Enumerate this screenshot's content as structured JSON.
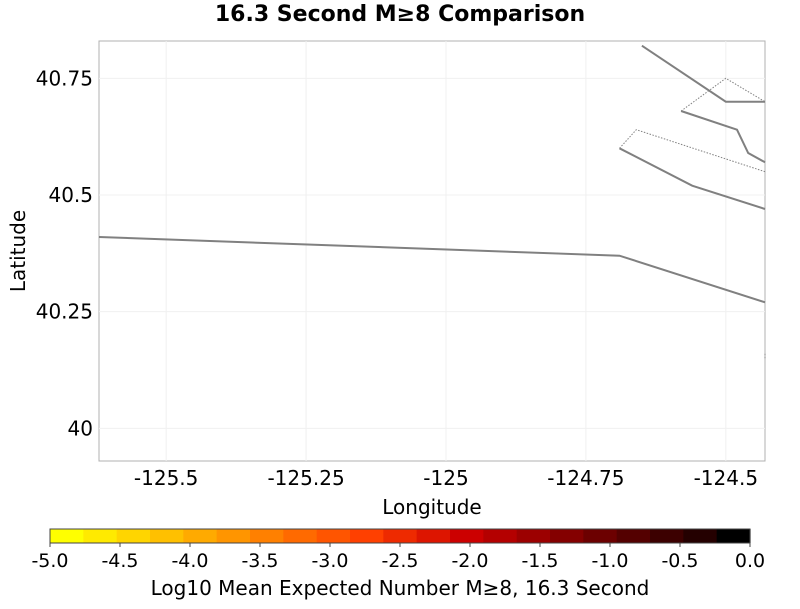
{
  "title": "16.3 Second M≥8 Comparison",
  "axes": {
    "xlabel": "Longitude",
    "ylabel": "Latitude",
    "x_range": [
      -125.62,
      -124.43
    ],
    "y_range": [
      39.93,
      40.83
    ],
    "x_ticks": [
      {
        "value": -125.5,
        "label": "-125.5"
      },
      {
        "value": -125.25,
        "label": "-125.25"
      },
      {
        "value": -125.0,
        "label": "-125"
      },
      {
        "value": -124.75,
        "label": "-124.75"
      },
      {
        "value": -124.5,
        "label": "-124.5"
      }
    ],
    "y_ticks": [
      {
        "value": 40.75,
        "label": "40.75"
      },
      {
        "value": 40.5,
        "label": "40.5"
      },
      {
        "value": 40.25,
        "label": "40.25"
      },
      {
        "value": 40.0,
        "label": "40"
      }
    ]
  },
  "colorbar": {
    "label": "Log10 Mean Expected Number M≥8, 16.3 Second",
    "min": -5.0,
    "max": 0.0,
    "tick_labels": [
      "-5.0",
      "-4.5",
      "-4.0",
      "-3.5",
      "-3.0",
      "-2.5",
      "-2.0",
      "-1.5",
      "-1.0",
      "-0.5",
      "0.0"
    ],
    "colors": [
      "#ffff00",
      "#ffea00",
      "#ffd500",
      "#ffc000",
      "#ffaa00",
      "#ff9500",
      "#ff8000",
      "#ff6a00",
      "#ff5500",
      "#ff4000",
      "#ee2a00",
      "#dd1500",
      "#cc0000",
      "#b40000",
      "#9c0000",
      "#840000",
      "#6c0000",
      "#540000",
      "#3c0000",
      "#240000",
      "#000000"
    ]
  },
  "map": {
    "line_color": "#808080",
    "fault_traces": [
      [
        [
          -125.62,
          40.41
        ],
        [
          -124.69,
          40.37
        ],
        [
          -124.43,
          40.27
        ]
      ],
      [
        [
          -124.69,
          40.6
        ],
        [
          -124.56,
          40.52
        ],
        [
          -124.43,
          40.47
        ]
      ],
      [
        [
          -124.65,
          40.82
        ],
        [
          -124.5,
          40.7
        ],
        [
          -124.43,
          40.7
        ]
      ],
      [
        [
          -124.58,
          40.68
        ],
        [
          -124.48,
          40.64
        ],
        [
          -124.46,
          40.59
        ],
        [
          -124.43,
          40.57
        ]
      ]
    ],
    "fault_outlines": [
      [
        [
          -124.69,
          40.6
        ],
        [
          -124.66,
          40.64
        ],
        [
          -124.43,
          40.55
        ]
      ],
      [
        [
          -124.58,
          40.68
        ],
        [
          -124.5,
          40.75
        ],
        [
          -124.43,
          40.7
        ]
      ],
      [
        [
          -124.43,
          40.16
        ],
        [
          -124.43,
          40.15
        ]
      ]
    ]
  }
}
